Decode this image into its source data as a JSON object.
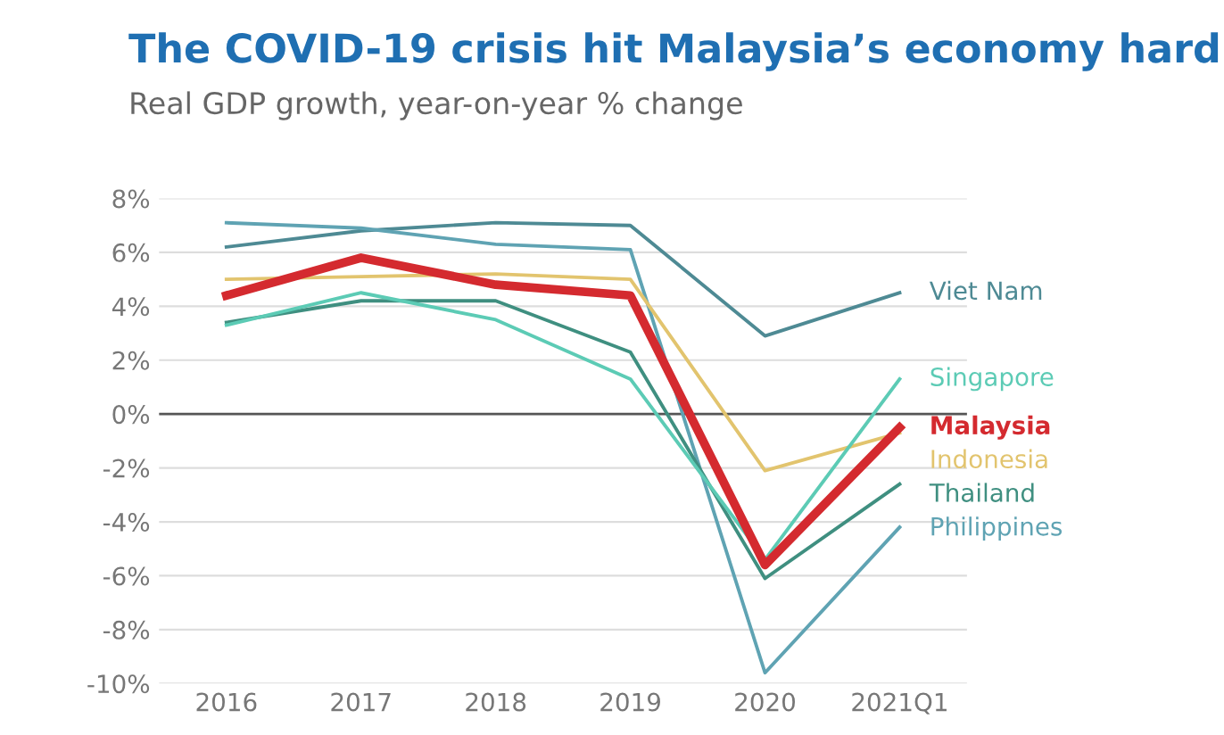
{
  "chart_data": {
    "type": "line",
    "title": "The COVID-19 crisis hit Malaysia’s economy hard",
    "subtitle": "Real GDP growth, year-on-year % change",
    "categories": [
      "2016",
      "2017",
      "2018",
      "2019",
      "2020",
      "2021Q1"
    ],
    "series": [
      {
        "name": "Viet Nam",
        "color": "#4e8a94",
        "values": [
          6.2,
          6.8,
          7.1,
          7.0,
          2.9,
          4.5
        ]
      },
      {
        "name": "Philippines",
        "color": "#5fa3b3",
        "values": [
          7.1,
          6.9,
          6.3,
          6.1,
          -9.6,
          -4.2
        ]
      },
      {
        "name": "Indonesia",
        "color": "#e2c46e",
        "values": [
          5.0,
          5.1,
          5.2,
          5.0,
          -2.1,
          -0.7
        ]
      },
      {
        "name": "Thailand",
        "color": "#3f8f80",
        "values": [
          3.4,
          4.2,
          4.2,
          2.3,
          -6.1,
          -2.6
        ]
      },
      {
        "name": "Singapore",
        "color": "#5ccbb5",
        "values": [
          3.3,
          4.5,
          3.5,
          1.3,
          -5.4,
          1.3
        ]
      },
      {
        "name": "Malaysia",
        "color": "#d42a2f",
        "values": [
          4.4,
          5.8,
          4.8,
          4.4,
          -5.6,
          -0.5
        ]
      }
    ],
    "ylim": [
      -10,
      8
    ],
    "yticks": [
      {
        "value": 8,
        "label": "8%"
      },
      {
        "value": 6,
        "label": "6%"
      },
      {
        "value": 4,
        "label": "4%"
      },
      {
        "value": 2,
        "label": "2%"
      },
      {
        "value": 0,
        "label": "0%"
      },
      {
        "value": -2,
        "label": "-2%"
      },
      {
        "value": -4,
        "label": "-4%"
      },
      {
        "value": -6,
        "label": "-6%"
      },
      {
        "value": -8,
        "label": "-8%"
      },
      {
        "value": -10,
        "label": "-10%"
      }
    ],
    "ref_lines": [
      {
        "axis": "y",
        "value": 0,
        "color": "#555555"
      }
    ],
    "grid": "y",
    "legend": "right",
    "marker": "none"
  }
}
